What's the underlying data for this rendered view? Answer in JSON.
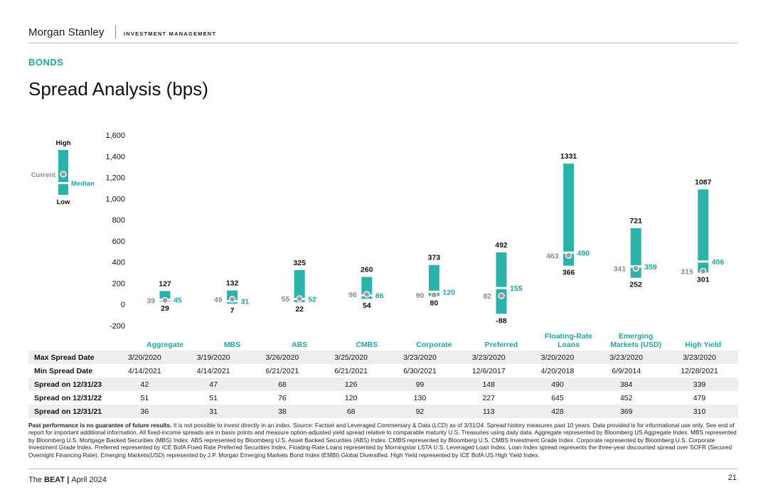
{
  "header": {
    "brand": "Morgan Stanley",
    "division": "INVESTMENT MANAGEMENT"
  },
  "section_label": "BONDS",
  "page_title": "Spread Analysis (bps)",
  "colors": {
    "teal": "#2bb3ab",
    "teal_text": "#1fa5a1",
    "gray_dot": "#9e9e9e",
    "gray_text": "#8a8a8a"
  },
  "chart_data": {
    "type": "range-bar",
    "title": "Spread Analysis (bps)",
    "ylim": [
      -200,
      1600
    ],
    "yticks": [
      "-200",
      "0",
      "200",
      "400",
      "600",
      "800",
      "1,000",
      "1,200",
      "1,400",
      "1,600"
    ],
    "ytick_values": [
      -200,
      0,
      200,
      400,
      600,
      800,
      1000,
      1200,
      1400,
      1600
    ],
    "legend": {
      "high": "High",
      "current": "Current",
      "median": "Median",
      "low": "Low"
    },
    "categories": [
      "Aggregate",
      "MBS",
      "ABS",
      "CMBS",
      "Corporate",
      "Preferred",
      "Floating-Rate Loans",
      "Emerging Markets (USD)",
      "High Yield"
    ],
    "category_lines": [
      [
        "Aggregate"
      ],
      [
        "MBS"
      ],
      [
        "ABS"
      ],
      [
        "CMBS"
      ],
      [
        "Corporate"
      ],
      [
        "Preferred"
      ],
      [
        "Floating-Rate",
        "Loans"
      ],
      [
        "Emerging",
        "Markets (USD)"
      ],
      [
        "High Yield"
      ]
    ],
    "high": [
      127,
      132,
      325,
      260,
      373,
      492,
      1331,
      721,
      1087
    ],
    "low": [
      29,
      7,
      22,
      54,
      80,
      -88,
      366,
      252,
      301
    ],
    "current": [
      39,
      49,
      55,
      96,
      90,
      82,
      463,
      341,
      315
    ],
    "median": [
      45,
      31,
      52,
      86,
      120,
      155,
      490,
      359,
      406
    ]
  },
  "table": {
    "rows": [
      {
        "label": "Max Spread Date",
        "values": [
          "3/20/2020",
          "3/19/2020",
          "3/26/2020",
          "3/25/2020",
          "3/23/2020",
          "3/23/2020",
          "3/20/2020",
          "3/23/2020",
          "3/23/2020"
        ]
      },
      {
        "label": "Min Spread Date",
        "values": [
          "4/14/2021",
          "4/14/2021",
          "6/21/2021",
          "6/21/2021",
          "6/30/2021",
          "12/6/2017",
          "4/20/2018",
          "6/9/2014",
          "12/28/2021"
        ]
      },
      {
        "label": "Spread on 12/31/23",
        "values": [
          "42",
          "47",
          "68",
          "126",
          "99",
          "148",
          "490",
          "384",
          "339"
        ]
      },
      {
        "label": "Spread on 12/31/22",
        "values": [
          "51",
          "51",
          "76",
          "120",
          "130",
          "227",
          "645",
          "452",
          "479"
        ]
      },
      {
        "label": "Spread on 12/31/21",
        "values": [
          "36",
          "31",
          "38",
          "68",
          "92",
          "113",
          "428",
          "369",
          "310"
        ]
      }
    ]
  },
  "footnote": {
    "lead": "Past performance is no guarantee of future results.",
    "body": " It is not possible to invest directly in an index. Source: Factset and Leveraged Commentary & Data (LCD) as of 3/31/24. Spread history measures past 10 years. Data provided is for informational use only. See end of report for important additional information. All fixed-income spreads are in basis points and measure option-adjusted yield spread relative to comparable maturity U.S. Treasuries using daily data. Aggregate represented by Bloomberg US Aggregate Index. MBS represented by Bloomberg U.S. Mortgage Backed Securities (MBS) Index. ABS represented by Bloomberg U.S. Asset Backed Securities (ABS) Index. CMBS represented by Bloomberg U.S. CMBS Investment Grade Index. Corporate represented by Bloomberg U.S. Corporate Investment Grade Index. Preferred represented by ICE BofA Fixed Rate Preferred Securities Index. Floating-Rate Loans represented by Morningstar LSTA U.S. Leveraged Loan Index. Loan Index spread represents the three-year discounted spread over SOFR (Secured Overnight Financing Rate). Emerging Markets(USD) represented by J.P. Morgan Emerging Markets Bond Index (EMBI) Global Diversified. High Yield represented by ICE BofA US High Yield Index."
  },
  "footer": {
    "pub_name_prefix": "The ",
    "pub_name": "BEAT",
    "pub_sep": " | ",
    "date": "April 2024",
    "page_number": "21"
  }
}
